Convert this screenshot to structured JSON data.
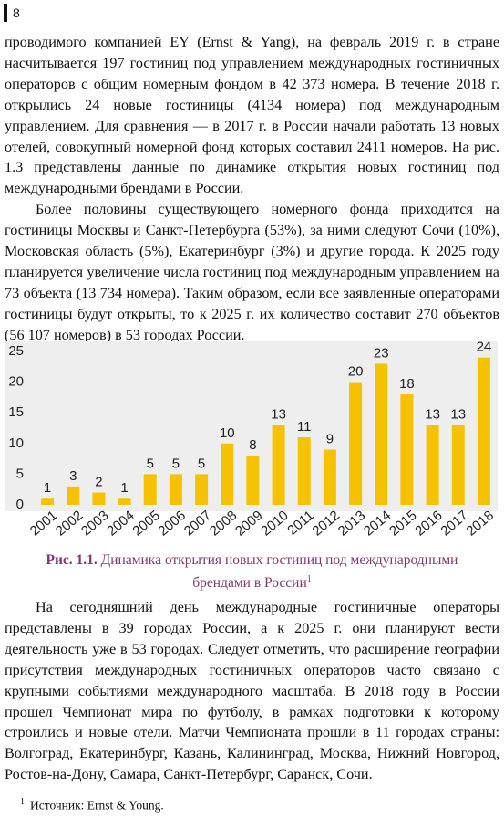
{
  "page_number": "8",
  "body_top": [
    "проводимого компанией EY (Ernst & Yang), на февраль 2019 г. в стране насчитывается 197 гостиниц под управлением международных гостиничных операторов с общим номерным фондом в 42 373 номера. В течение 2018 г. открылись 24 новые гостиницы (4134 номера) под международным управлением. Для сравнения — в 2017 г. в России начали работать 13 новых отелей, совокупный номерной фонд которых составил 2411 номеров. На рис. 1.3 представлены данные по динамике открытия новых гостиниц под международными брендами в России.",
    "Более половины существующего номерного фонда приходится на гостиницы Москвы и Санкт-Петербурга (53%), за ними следуют Сочи (10%), Московская область (5%), Екатеринбург (3%) и другие города. К 2025 году планируется увеличение числа гостиниц под международным управлением на 73 объекта (13 734 номера). Таким образом, если все заявленные операторами гостиницы будут открыты, то к 2025 г. их количество составит 270 объектов (56 107 номеров) в 53 городах России."
  ],
  "chart_data": {
    "type": "bar",
    "categories": [
      "2001",
      "2002",
      "2003",
      "2004",
      "2005",
      "2006",
      "2007",
      "2008",
      "2009",
      "2010",
      "2011",
      "2012",
      "2013",
      "2014",
      "2015",
      "2016",
      "2017",
      "2018"
    ],
    "values": [
      1,
      3,
      2,
      1,
      5,
      5,
      5,
      10,
      8,
      13,
      11,
      9,
      20,
      23,
      18,
      13,
      13,
      24
    ],
    "color": "#f6c200",
    "background": "#eeeeee",
    "ylim": [
      0,
      25
    ],
    "yticks": [
      0,
      5,
      10,
      15,
      20,
      25
    ]
  },
  "caption": {
    "label": "Рис. 1.1.",
    "text": "Динамика открытия новых гостиниц под международными брендами в России",
    "note_ref": "1"
  },
  "body_bottom": [
    "На сегодняшний день международные гостиничные операторы представлены в 39 городах России, а к 2025 г. они планируют вести деятельность уже в 53 городах. Следует отметить, что расширение географии присутствия международных гостиничных операторов часто связано с крупными событиями международного масштаба. В 2018 году в России прошел Чемпионат мира по футболу, в рамках подготовки к которому строились и новые отели. Матчи Чемпионата прошли в 11 городах страны: Волгоград, Екатеринбург, Казань, Калининград, Москва, Нижний Новгород, Ростов-на-Дону, Самара, Санкт-Петербург, Саранск, Сочи."
  ],
  "footnote": {
    "marker": "1",
    "text": "Источник: Ernst & Young."
  }
}
